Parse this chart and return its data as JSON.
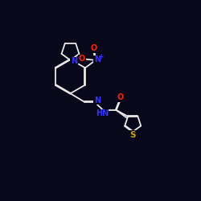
{
  "background_color": "#08081a",
  "atom_colors": {
    "N": "#3333ff",
    "O": "#ff2200",
    "S": "#ccaa00"
  },
  "bond_color": "#e8e8e8",
  "figsize": [
    2.5,
    2.5
  ],
  "dpi": 100
}
